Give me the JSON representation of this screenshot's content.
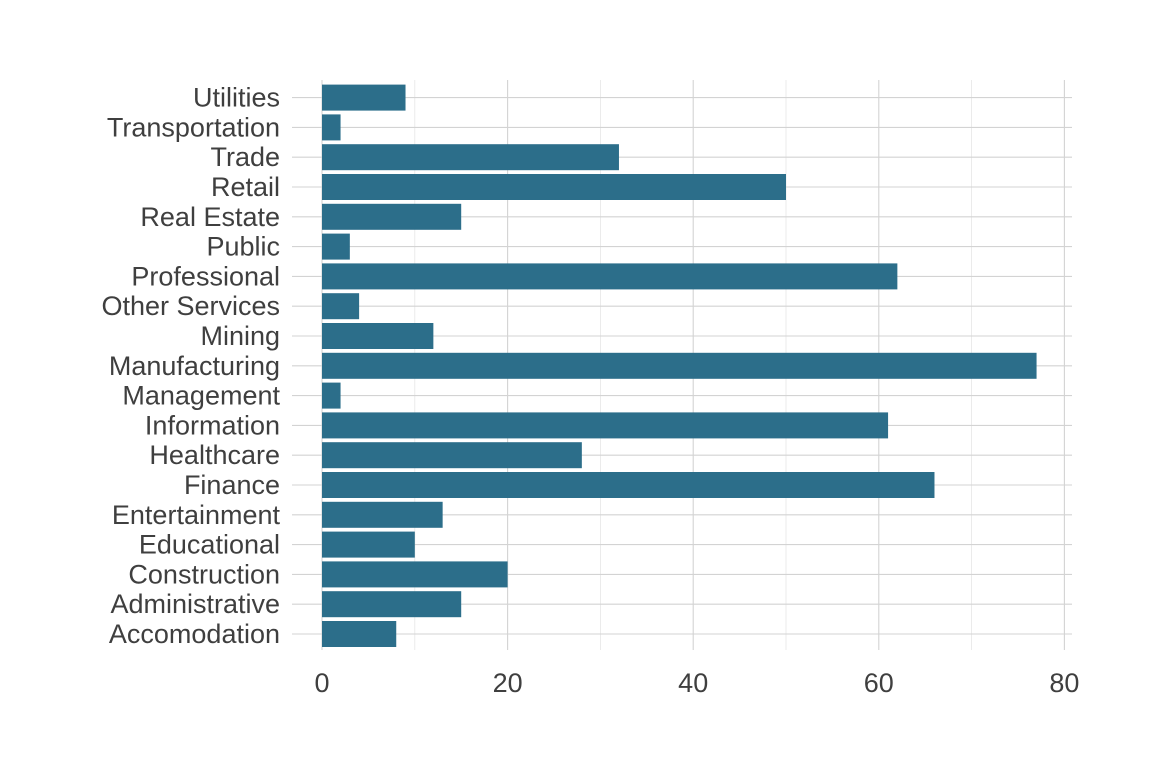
{
  "chart_data": {
    "type": "bar",
    "orientation": "horizontal",
    "title": "",
    "xlabel": "",
    "ylabel": "",
    "categories": [
      "Accomodation",
      "Administrative",
      "Construction",
      "Educational",
      "Entertainment",
      "Finance",
      "Healthcare",
      "Information",
      "Management",
      "Manufacturing",
      "Mining",
      "Other Services",
      "Professional",
      "Public",
      "Real Estate",
      "Retail",
      "Trade",
      "Transportation",
      "Utilities"
    ],
    "values": [
      8,
      15,
      20,
      10,
      13,
      66,
      28,
      61,
      2,
      77,
      12,
      4,
      62,
      3,
      15,
      50,
      32,
      2,
      9
    ],
    "xlim": [
      0,
      80
    ],
    "x_ticks": [
      0,
      20,
      40,
      60,
      80
    ],
    "grid": true,
    "bar_color": "#2c6e8a",
    "text_color": "#3f3f3f",
    "grid_color": "#d3d3d3",
    "legend": "none"
  }
}
